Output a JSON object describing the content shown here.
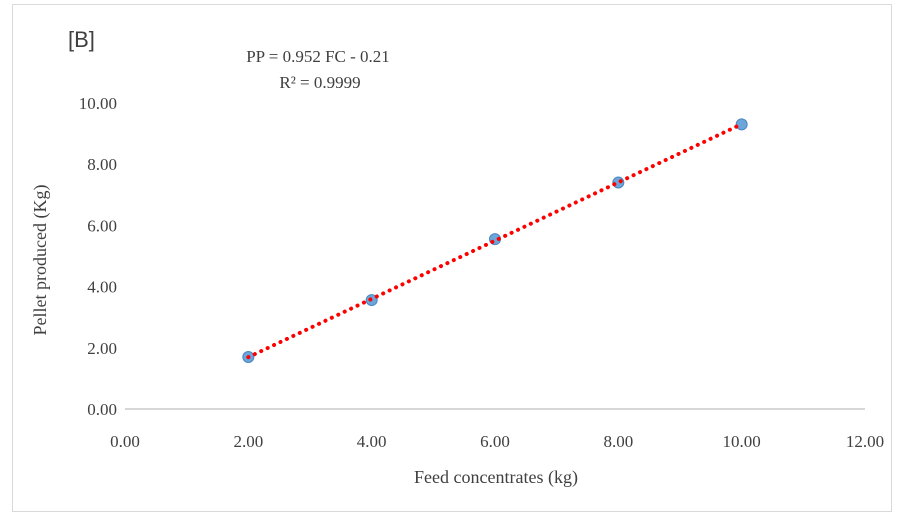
{
  "panel_label": "[B]",
  "equation_line1": "PP = 0.952 FC - 0.21",
  "equation_line2": "R² = 0.9999",
  "colors": {
    "marker_fill": "#5b9bd5",
    "marker_stroke": "#4a86c0",
    "trendline": "#ff0000",
    "axis": "#bfbfbf",
    "text": "#404040"
  },
  "chart_data": {
    "type": "scatter",
    "title": "",
    "xlabel": "Feed concentrates (kg)",
    "ylabel": "Pellet produced (Kg)",
    "xlim": [
      0,
      12
    ],
    "ylim": [
      0,
      10
    ],
    "x_ticks": [
      "0.00",
      "2.00",
      "4.00",
      "6.00",
      "8.00",
      "10.00",
      "12.00"
    ],
    "y_ticks": [
      "0.00",
      "2.00",
      "4.00",
      "6.00",
      "8.00",
      "10.00"
    ],
    "grid": false,
    "legend": "none",
    "series": [
      {
        "x": [
          2,
          4,
          6,
          8,
          10
        ],
        "y": [
          1.7,
          3.56,
          5.55,
          7.4,
          9.3
        ]
      }
    ],
    "trendline": {
      "type": "linear",
      "slope": 0.952,
      "intercept": -0.21,
      "x_range": [
        2,
        10
      ],
      "style": "dotted"
    }
  }
}
